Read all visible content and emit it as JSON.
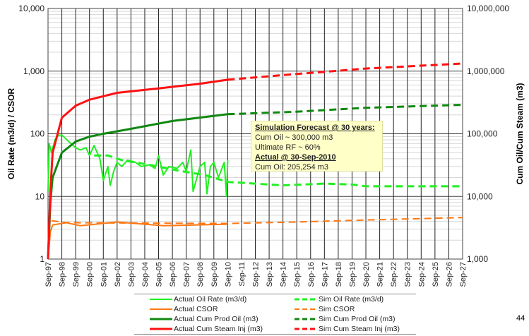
{
  "chart_data": {
    "type": "line",
    "y_left": {
      "label": "Oil Rate (m3/d) / CSOR",
      "scale": "log",
      "range": [
        1,
        10000
      ],
      "ticks": [
        "1",
        "10",
        "100",
        "1,000",
        "10,000"
      ]
    },
    "y_right": {
      "label": "Cum Oil/Cum Steam (m3)",
      "scale": "log",
      "range": [
        1000,
        10000000
      ],
      "ticks": [
        "1,000",
        "10,000",
        "100,000",
        "1,000,000",
        "10,000,000"
      ]
    },
    "x": {
      "range": [
        "1997-09",
        "2027-09"
      ],
      "ticks": [
        "Sep-97",
        "Sep-98",
        "Sep-99",
        "Sep-00",
        "Sep-01",
        "Sep-02",
        "Sep-03",
        "Sep-04",
        "Sep-05",
        "Sep-06",
        "Sep-07",
        "Sep-08",
        "Sep-09",
        "Sep-10",
        "Sep-11",
        "Sep-12",
        "Sep-13",
        "Sep-14",
        "Sep-15",
        "Sep-16",
        "Sep-17",
        "Sep-18",
        "Sep-19",
        "Sep-20",
        "Sep-21",
        "Sep-22",
        "Sep-23",
        "Sep-24",
        "Sep-25",
        "Sep-26",
        "Sep-27"
      ]
    },
    "grid": true,
    "legend_position": "bottom",
    "series": [
      {
        "name": "Actual Oil Rate (m3/d)",
        "axis": "left",
        "color": "#22ee22",
        "dash": false,
        "width": 2,
        "points": [
          [
            "1997-09",
            12
          ],
          [
            "1997-10",
            70
          ],
          [
            "1997-12",
            50
          ],
          [
            "1998-03",
            80
          ],
          [
            "1998-06",
            95
          ],
          [
            "1998-09",
            95
          ],
          [
            "1998-12",
            85
          ],
          [
            "1999-03",
            75
          ],
          [
            "1999-09",
            60
          ],
          [
            "2000-01",
            55
          ],
          [
            "2000-06",
            60
          ],
          [
            "2000-09",
            45
          ],
          [
            "2001-01",
            65
          ],
          [
            "2001-06",
            40
          ],
          [
            "2001-09",
            18
          ],
          [
            "2002-01",
            30
          ],
          [
            "2002-03",
            15
          ],
          [
            "2002-06",
            25
          ],
          [
            "2002-09",
            35
          ],
          [
            "2003-01",
            30
          ],
          [
            "2003-06",
            38
          ],
          [
            "2004-01",
            35
          ],
          [
            "2004-06",
            30
          ],
          [
            "2005-01",
            32
          ],
          [
            "2005-06",
            28
          ],
          [
            "2005-09",
            45
          ],
          [
            "2006-01",
            22
          ],
          [
            "2006-06",
            30
          ],
          [
            "2007-01",
            28
          ],
          [
            "2007-06",
            35
          ],
          [
            "2007-09",
            25
          ],
          [
            "2008-01",
            55
          ],
          [
            "2008-03",
            12
          ],
          [
            "2008-09",
            30
          ],
          [
            "2009-01",
            35
          ],
          [
            "2009-03",
            11
          ],
          [
            "2009-06",
            30
          ],
          [
            "2009-09",
            35
          ],
          [
            "2010-01",
            20
          ],
          [
            "2010-06",
            35
          ],
          [
            "2010-08",
            10
          ],
          [
            "2010-09",
            38
          ]
        ]
      },
      {
        "name": "Sim Oil Rate (m3/d)",
        "axis": "left",
        "color": "#22ee22",
        "dash": true,
        "width": 3,
        "points": [
          [
            "2001-01",
            45
          ],
          [
            "2002-01",
            45
          ],
          [
            "2003-01",
            38
          ],
          [
            "2005-01",
            32
          ],
          [
            "2007-01",
            26
          ],
          [
            "2009-01",
            22
          ],
          [
            "2010-09",
            17
          ],
          [
            "2012-09",
            16
          ],
          [
            "2014-09",
            15
          ],
          [
            "2017-09",
            16
          ],
          [
            "2019-09",
            15.5
          ],
          [
            "2020-09",
            14.5
          ],
          [
            "2027-09",
            14.5
          ]
        ]
      },
      {
        "name": "Actual CSOR",
        "axis": "left",
        "color": "#ff7711",
        "dash": false,
        "width": 2,
        "points": [
          [
            "1997-09",
            1
          ],
          [
            "1997-11",
            2.7
          ],
          [
            "1998-01",
            3.5
          ],
          [
            "1999-01",
            3.8
          ],
          [
            "2000-01",
            3.4
          ],
          [
            "2002-09",
            3.9
          ],
          [
            "2006-01",
            3.4
          ],
          [
            "2010-09",
            3.6
          ]
        ]
      },
      {
        "name": "Sim CSOR",
        "axis": "left",
        "color": "#ff7711",
        "dash": true,
        "width": 2,
        "points": [
          [
            "1997-12",
            4.1
          ],
          [
            "1999-01",
            3.8
          ],
          [
            "2010-09",
            3.7
          ],
          [
            "2015-09",
            3.9
          ],
          [
            "2020-09",
            4.2
          ],
          [
            "2027-09",
            4.6
          ]
        ]
      },
      {
        "name": "Actual Cum Prod Oil (m3)",
        "axis": "right",
        "color": "#118811",
        "dash": false,
        "width": 3,
        "points": [
          [
            "1997-09",
            1000
          ],
          [
            "1997-11",
            8000
          ],
          [
            "1998-01",
            20000
          ],
          [
            "1998-09",
            50000
          ],
          [
            "1999-09",
            75000
          ],
          [
            "2000-09",
            90000
          ],
          [
            "2001-09",
            100000
          ],
          [
            "2003-09",
            120000
          ],
          [
            "2006-09",
            160000
          ],
          [
            "2010-09",
            205254
          ]
        ]
      },
      {
        "name": "Sim Cum Prod Oil (m3)",
        "axis": "right",
        "color": "#118811",
        "dash": true,
        "width": 3,
        "points": [
          [
            "2010-09",
            205000
          ],
          [
            "2015-09",
            225000
          ],
          [
            "2020-09",
            260000
          ],
          [
            "2027-09",
            290000
          ]
        ]
      },
      {
        "name": "Actual Cum Steam Inj (m3)",
        "axis": "right",
        "color": "#ff1111",
        "dash": false,
        "width": 3,
        "points": [
          [
            "1997-09",
            1000
          ],
          [
            "1997-11",
            12000
          ],
          [
            "1998-01",
            50000
          ],
          [
            "1998-09",
            180000
          ],
          [
            "1999-09",
            280000
          ],
          [
            "2000-09",
            350000
          ],
          [
            "2002-09",
            450000
          ],
          [
            "2005-09",
            530000
          ],
          [
            "2008-09",
            630000
          ],
          [
            "2010-09",
            730000
          ]
        ]
      },
      {
        "name": "Sim Cum Steam Inj (m3)",
        "axis": "right",
        "color": "#ff1111",
        "dash": true,
        "width": 3,
        "points": [
          [
            "2010-09",
            730000
          ],
          [
            "2015-09",
            900000
          ],
          [
            "2020-09",
            1100000
          ],
          [
            "2027-09",
            1320000
          ]
        ]
      }
    ]
  },
  "annotation": {
    "line1": "Simulation Forecast @ 30 years:",
    "line2": "Cum Oil ~ 300,000 m3",
    "line3": "Ultimate RF ~ 60%",
    "line4": "Actual @ 30-Sep-2010",
    "line5": "Cum Oil: 205,254 m3"
  },
  "page_number": "44"
}
